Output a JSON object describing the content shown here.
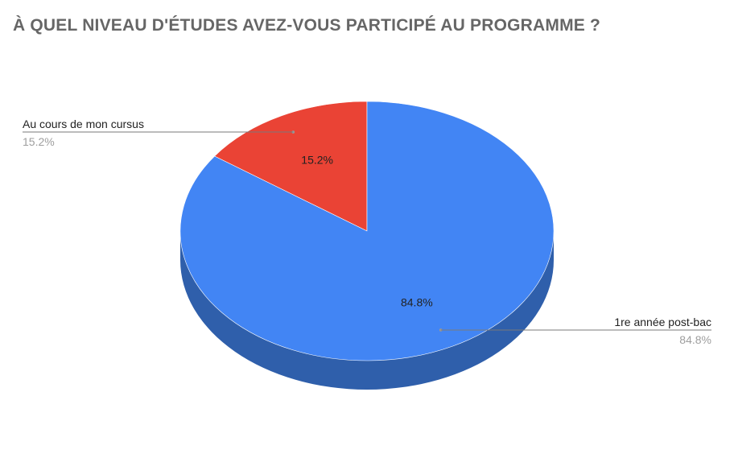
{
  "chart_data": {
    "type": "pie",
    "title": "À QUEL NIVEAU D'ÉTUDES AVEZ-VOUS PARTICIPÉ AU PROGRAMME ?",
    "is_3d": true,
    "legend": "none",
    "slices": [
      {
        "label": "Au cours de mon cursus",
        "value": 15.2,
        "value_label": "15.2%",
        "color": "#ea4335",
        "side_color": "#a8302a"
      },
      {
        "label": "1re année post-bac",
        "value": 84.8,
        "value_label": "84.8%",
        "color": "#4285f4",
        "side_color": "#2f5fab"
      }
    ]
  }
}
